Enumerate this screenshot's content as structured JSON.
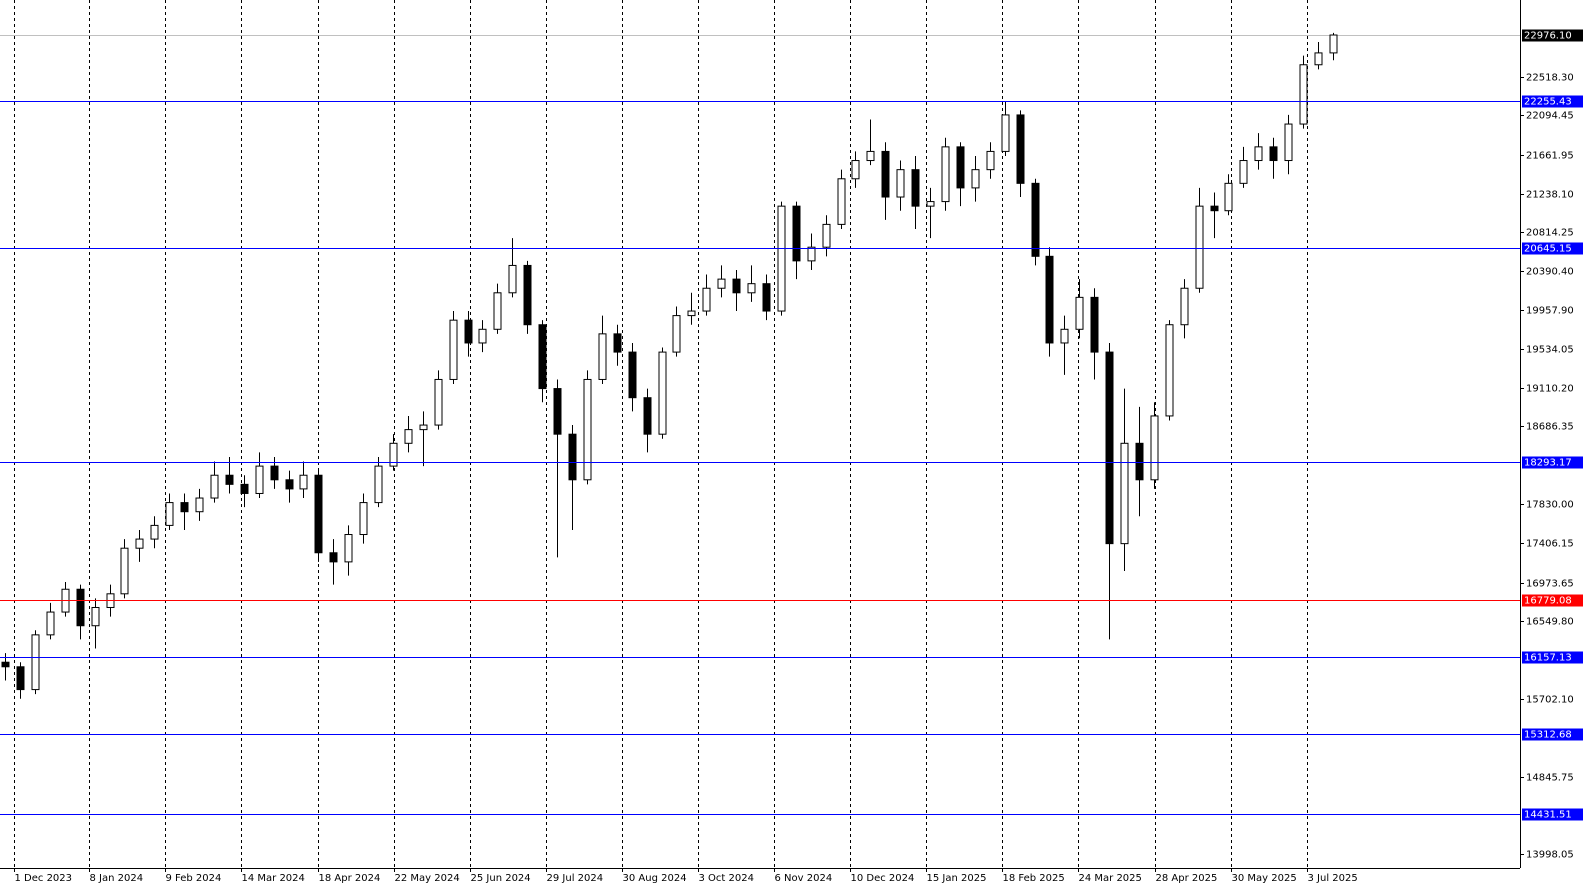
{
  "chart_data": {
    "type": "candlestick",
    "open": [
      16100,
      16050,
      15800,
      16400,
      16650,
      16900,
      16500,
      16700,
      16850,
      17350,
      17450,
      17600,
      17850,
      17750,
      17900,
      18150,
      18050,
      17950,
      18250,
      18100,
      18000,
      18150,
      17300,
      17200,
      17500,
      17850,
      18250,
      18500,
      18650,
      18700,
      19200,
      19850,
      19600,
      19750,
      20150,
      20450,
      19800,
      19100,
      18600,
      18100,
      19200,
      19700,
      19500,
      19000,
      18600,
      19500,
      19900,
      19950,
      20200,
      20300,
      20150,
      20250,
      19950,
      21100,
      20500,
      20650,
      20900,
      21400,
      21600,
      21700,
      21200,
      21500,
      21100,
      21150,
      21750,
      21300,
      21500,
      21700,
      22100,
      21350,
      20550,
      19600,
      19750,
      20100,
      19500,
      17400,
      18500,
      18100,
      18800,
      19800,
      20200,
      21100,
      21050,
      21350,
      21600,
      21750,
      21600,
      22000,
      22650,
      22780
    ],
    "high": [
      16200,
      16100,
      16450,
      16750,
      16980,
      16950,
      16800,
      16950,
      17450,
      17550,
      17700,
      17950,
      17950,
      18000,
      18300,
      18350,
      18150,
      18400,
      18350,
      18200,
      18300,
      18200,
      17450,
      17600,
      17950,
      18350,
      18600,
      18800,
      18850,
      19300,
      19950,
      19950,
      19850,
      20250,
      20750,
      20500,
      19850,
      19200,
      18700,
      19300,
      19900,
      19800,
      19600,
      19100,
      19550,
      20000,
      20150,
      20350,
      20450,
      20400,
      20450,
      20350,
      21150,
      21150,
      20800,
      21000,
      21500,
      21700,
      22050,
      21800,
      21600,
      21650,
      21300,
      21850,
      21800,
      21650,
      21800,
      22250,
      22150,
      21400,
      20650,
      19900,
      20300,
      20200,
      19600,
      19100,
      18900,
      18950,
      19850,
      20300,
      21300,
      21250,
      21450,
      21750,
      21900,
      21850,
      22100,
      22750,
      22900,
      23000
    ],
    "low": [
      15900,
      15700,
      15750,
      16350,
      16600,
      16350,
      16250,
      16600,
      16800,
      17200,
      17350,
      17550,
      17550,
      17650,
      17850,
      17950,
      17800,
      17900,
      18000,
      17850,
      17900,
      17200,
      16950,
      17050,
      17400,
      17800,
      18200,
      18400,
      18250,
      18650,
      19150,
      19450,
      19500,
      19700,
      20100,
      19700,
      18950,
      17250,
      17550,
      18050,
      19150,
      19350,
      18850,
      18400,
      18550,
      19450,
      19800,
      19900,
      20100,
      19950,
      20050,
      19850,
      19900,
      20300,
      20400,
      20550,
      20850,
      21300,
      21550,
      20950,
      21050,
      20850,
      20750,
      21050,
      21100,
      21150,
      21400,
      21650,
      21200,
      20450,
      19450,
      19250,
      19650,
      19200,
      16350,
      17100,
      17700,
      18000,
      18750,
      19650,
      20150,
      20750,
      21000,
      21300,
      21500,
      21400,
      21450,
      21950,
      22600,
      22700
    ],
    "close": [
      16050,
      15800,
      16400,
      16650,
      16900,
      16500,
      16700,
      16850,
      17350,
      17450,
      17600,
      17850,
      17750,
      17900,
      18150,
      18050,
      17950,
      18250,
      18100,
      18000,
      18150,
      17300,
      17200,
      17500,
      17850,
      18250,
      18500,
      18650,
      18700,
      19200,
      19850,
      19600,
      19750,
      20150,
      20450,
      19800,
      19100,
      18600,
      18100,
      19200,
      19700,
      19500,
      19000,
      18600,
      19500,
      19900,
      19950,
      20200,
      20300,
      20150,
      20250,
      19950,
      21100,
      20500,
      20650,
      20900,
      21400,
      21600,
      21700,
      21200,
      21500,
      21100,
      21150,
      21750,
      21300,
      21500,
      21700,
      22100,
      21350,
      20550,
      19600,
      19750,
      20100,
      19500,
      17400,
      18500,
      18100,
      18800,
      19800,
      20200,
      21100,
      21050,
      21350,
      21600,
      21750,
      21600,
      22000,
      22650,
      22780,
      22976.1
    ],
    "bull_color": "#ffffff",
    "bear_color": "#000000",
    "wick_color": "#000000",
    "xlim": [
      -0.34,
      101.54
    ],
    "xticks": [
      {
        "value": 0.6,
        "label": "1 Dec 2023"
      },
      {
        "value": 5.63,
        "label": "8 Jan 2024"
      },
      {
        "value": 10.72,
        "label": "9 Feb 2024"
      },
      {
        "value": 15.82,
        "label": "14 Mar 2024"
      },
      {
        "value": 20.98,
        "label": "18 Apr 2024"
      },
      {
        "value": 26.07,
        "label": "22 May 2024"
      },
      {
        "value": 31.17,
        "label": "25 Jun 2024"
      },
      {
        "value": 36.26,
        "label": "29 Jul 2024"
      },
      {
        "value": 41.35,
        "label": "30 Aug 2024"
      },
      {
        "value": 46.45,
        "label": "3 Oct 2024"
      },
      {
        "value": 51.54,
        "label": "6 Nov 2024"
      },
      {
        "value": 56.63,
        "label": "10 Dec 2024"
      },
      {
        "value": 61.73,
        "label": "15 Jan 2025"
      },
      {
        "value": 66.82,
        "label": "18 Feb 2025"
      },
      {
        "value": 71.92,
        "label": "24 Mar 2025"
      },
      {
        "value": 77.08,
        "label": "28 Apr 2025"
      },
      {
        "value": 82.17,
        "label": "30 May 2025"
      },
      {
        "value": 87.27,
        "label": "3 Jul 2025"
      }
    ],
    "ylim": [
      13844,
      23360
    ],
    "yticks": [
      13998.05,
      {
        "value": 14845.75,
        "label": "14845.75"
      },
      {
        "value": 15702.1,
        "label": "15702.10"
      },
      {
        "value": 16549.8,
        "label": "16549.80"
      },
      16973.65,
      17406.15,
      {
        "value": 17830,
        "label": "17830.00"
      },
      18686.35,
      {
        "value": 19110.2,
        "label": "19110.20"
      },
      19534.05,
      {
        "value": 19957.9,
        "label": "19957.90"
      },
      {
        "value": 20390.4,
        "label": "20390.40"
      },
      20814.25,
      {
        "value": 21238.1,
        "label": "21238.10"
      },
      21661.95,
      22094.45,
      {
        "value": 22518.3,
        "label": "22518.30"
      }
    ],
    "grid": true,
    "levels": [
      {
        "value": 22255.43,
        "color": "#0000ff"
      },
      {
        "value": 20645.15,
        "color": "#0000ff"
      },
      {
        "value": 18293.17,
        "color": "#0000ff"
      },
      {
        "value": 16779.08,
        "color": "#ff0000"
      },
      {
        "value": 16157.13,
        "color": "#0000ff"
      },
      {
        "value": 15312.68,
        "color": "#0000ff"
      },
      {
        "value": 14431.51,
        "color": "#0000ff"
      }
    ],
    "current_price": {
      "value": 22976.1,
      "label": "22976.10",
      "color": "#000000"
    }
  }
}
